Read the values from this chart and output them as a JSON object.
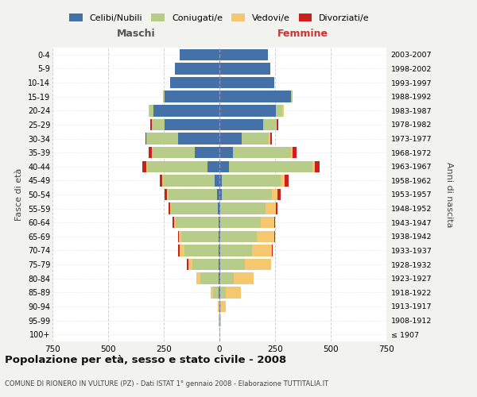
{
  "age_groups": [
    "100+",
    "95-99",
    "90-94",
    "85-89",
    "80-84",
    "75-79",
    "70-74",
    "65-69",
    "60-64",
    "55-59",
    "50-54",
    "45-49",
    "40-44",
    "35-39",
    "30-34",
    "25-29",
    "20-24",
    "15-19",
    "10-14",
    "5-9",
    "0-4"
  ],
  "birth_years": [
    "≤ 1907",
    "1908-1912",
    "1913-1917",
    "1918-1922",
    "1923-1927",
    "1928-1932",
    "1933-1937",
    "1938-1942",
    "1943-1947",
    "1948-1952",
    "1953-1957",
    "1958-1962",
    "1963-1967",
    "1968-1972",
    "1973-1977",
    "1978-1982",
    "1983-1987",
    "1988-1992",
    "1993-1997",
    "1998-2002",
    "2003-2007"
  ],
  "maschi_celibi": [
    0,
    0,
    0,
    2,
    5,
    5,
    5,
    5,
    5,
    8,
    12,
    20,
    55,
    110,
    185,
    245,
    295,
    248,
    220,
    200,
    178
  ],
  "maschi_coniugati": [
    0,
    2,
    5,
    28,
    82,
    118,
    152,
    168,
    192,
    210,
    218,
    232,
    270,
    190,
    142,
    60,
    18,
    5,
    0,
    0,
    0
  ],
  "maschi_vedovi": [
    0,
    0,
    2,
    8,
    18,
    18,
    22,
    8,
    5,
    5,
    5,
    5,
    5,
    5,
    0,
    0,
    5,
    0,
    0,
    0,
    0
  ],
  "maschi_divorziati": [
    0,
    0,
    0,
    0,
    0,
    5,
    5,
    5,
    8,
    5,
    12,
    12,
    18,
    12,
    5,
    5,
    0,
    0,
    0,
    0,
    0
  ],
  "femmine_nubili": [
    0,
    0,
    2,
    2,
    5,
    5,
    5,
    5,
    5,
    5,
    12,
    12,
    42,
    62,
    100,
    195,
    255,
    320,
    248,
    228,
    218
  ],
  "femmine_coniugate": [
    0,
    2,
    5,
    25,
    58,
    108,
    142,
    162,
    182,
    202,
    222,
    262,
    375,
    260,
    122,
    58,
    28,
    8,
    0,
    0,
    0
  ],
  "femmine_vedove": [
    0,
    5,
    22,
    68,
    92,
    118,
    88,
    78,
    58,
    48,
    28,
    18,
    12,
    5,
    5,
    5,
    5,
    0,
    0,
    0,
    0
  ],
  "femmine_divorziate": [
    0,
    0,
    0,
    0,
    0,
    0,
    5,
    5,
    5,
    5,
    12,
    18,
    22,
    18,
    10,
    5,
    0,
    0,
    0,
    0,
    0
  ],
  "colors": {
    "celibi": "#4472a8",
    "coniugati": "#b8cc8a",
    "vedovi": "#f5c870",
    "divorziati": "#cc2020"
  },
  "xlim": 750,
  "title": "Popolazione per età, sesso e stato civile - 2008",
  "subtitle": "COMUNE DI RIONERO IN VULTURE (PZ) - Dati ISTAT 1° gennaio 2008 - Elaborazione TUTTITALIA.IT",
  "ylabel_left": "Fasce di età",
  "ylabel_right": "Anni di nascita",
  "xlabel_left": "Maschi",
  "xlabel_right": "Femmine",
  "bg_color": "#f2f2ee",
  "plot_bg": "#ffffff"
}
